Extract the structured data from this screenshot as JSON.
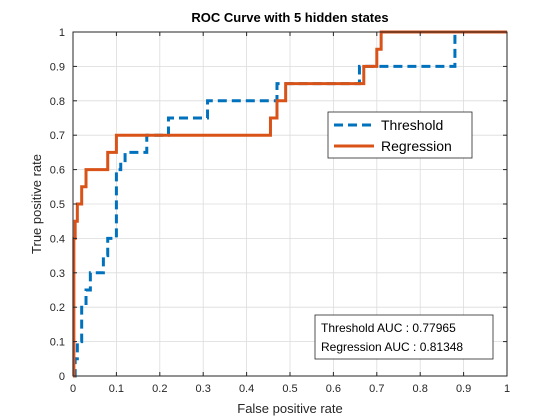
{
  "chart_data": {
    "type": "line",
    "title": "ROC Curve with 5 hidden states",
    "xlabel": "False positive rate",
    "ylabel": "True positive rate",
    "xlim": [
      0,
      1
    ],
    "ylim": [
      0,
      1
    ],
    "grid": true,
    "legend_position": "upper-right",
    "x_ticks": [
      "0",
      "0.1",
      "0.2",
      "0.3",
      "0.4",
      "0.5",
      "0.6",
      "0.7",
      "0.8",
      "0.9",
      "1"
    ],
    "y_ticks": [
      "0",
      "0.1",
      "0.2",
      "0.3",
      "0.4",
      "0.5",
      "0.6",
      "0.7",
      "0.8",
      "0.9",
      "1"
    ],
    "series": [
      {
        "name": "Threshold",
        "color": "#0072BD",
        "dash": "dashed",
        "x": [
          0,
          0.005,
          0.005,
          0.01,
          0.01,
          0.02,
          0.02,
          0.03,
          0.03,
          0.04,
          0.04,
          0.07,
          0.07,
          0.08,
          0.08,
          0.1,
          0.1,
          0.11,
          0.11,
          0.12,
          0.12,
          0.17,
          0.17,
          0.22,
          0.22,
          0.31,
          0.31,
          0.47,
          0.47,
          0.66,
          0.66,
          0.7,
          0.7,
          0.88,
          0.88,
          1
        ],
        "y": [
          0,
          0,
          0.05,
          0.05,
          0.1,
          0.1,
          0.2,
          0.2,
          0.25,
          0.25,
          0.3,
          0.3,
          0.35,
          0.35,
          0.4,
          0.4,
          0.6,
          0.6,
          0.62,
          0.62,
          0.65,
          0.65,
          0.7,
          0.7,
          0.75,
          0.75,
          0.8,
          0.8,
          0.85,
          0.85,
          0.9,
          0.9,
          0.9,
          0.9,
          1,
          1
        ]
      },
      {
        "name": "Regression",
        "color": "#D95319",
        "dash": "solid",
        "x": [
          0,
          0.002,
          0.002,
          0.005,
          0.005,
          0.01,
          0.01,
          0.02,
          0.02,
          0.03,
          0.03,
          0.04,
          0.04,
          0.08,
          0.08,
          0.1,
          0.1,
          0.455,
          0.455,
          0.47,
          0.47,
          0.49,
          0.49,
          0.67,
          0.67,
          0.7,
          0.7,
          0.71,
          0.71,
          1
        ],
        "y": [
          0,
          0,
          0.4,
          0.4,
          0.45,
          0.45,
          0.5,
          0.5,
          0.55,
          0.55,
          0.6,
          0.6,
          0.6,
          0.6,
          0.65,
          0.65,
          0.7,
          0.7,
          0.75,
          0.75,
          0.8,
          0.8,
          0.85,
          0.85,
          0.9,
          0.9,
          0.95,
          0.95,
          1,
          1
        ]
      }
    ],
    "annotations": [
      "Threshold AUC : 0.77965",
      "Regression AUC : 0.81348"
    ]
  }
}
